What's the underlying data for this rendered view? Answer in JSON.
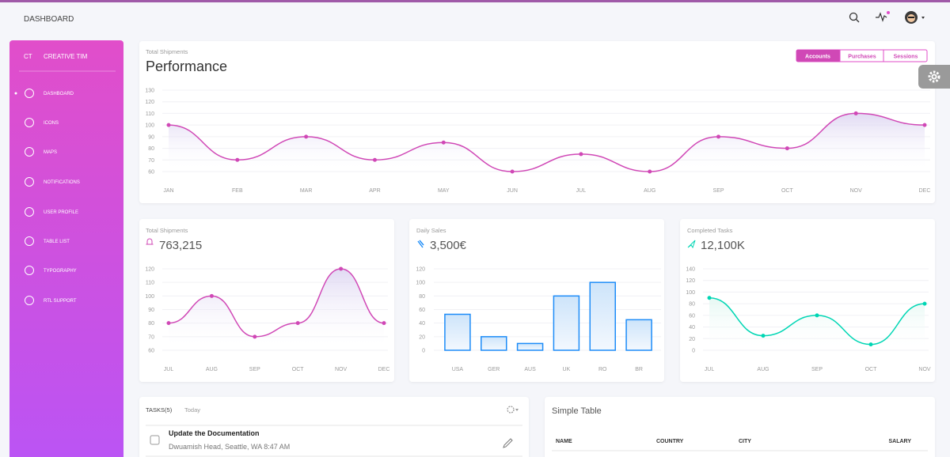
{
  "header": {
    "title": "DASHBOARD"
  },
  "sidebar": {
    "logo_mini": "CT",
    "logo": "CREATIVE TIM",
    "items": [
      "DASHBOARD",
      "ICONS",
      "MAPS",
      "NOTIFICATIONS",
      "USER PROFILE",
      "TABLE LIST",
      "TYPOGRAPHY",
      "RTL SUPPORT"
    ]
  },
  "chart_data": [
    {
      "type": "line",
      "subtitle": "Total Shipments",
      "title": "Performance",
      "tabs": [
        "Accounts",
        "Purchases",
        "Sessions"
      ],
      "categories": [
        "JAN",
        "FEB",
        "MAR",
        "APR",
        "MAY",
        "JUN",
        "JUL",
        "AUG",
        "SEP",
        "OCT",
        "NOV",
        "DEC"
      ],
      "values": [
        100,
        70,
        90,
        70,
        85,
        60,
        75,
        60,
        90,
        80,
        110,
        100
      ],
      "color": "#d048b6",
      "ylim": [
        60,
        130
      ],
      "yticks": [
        60,
        70,
        80,
        90,
        100,
        110,
        120,
        130
      ],
      "grid": true
    },
    {
      "type": "line",
      "title": "Total Shipments",
      "kpi": "763,215",
      "categories": [
        "JUL",
        "AUG",
        "SEP",
        "OCT",
        "NOV",
        "DEC"
      ],
      "values": [
        80,
        100,
        70,
        80,
        120,
        80
      ],
      "color": "#d048b6",
      "ylim": [
        60,
        120
      ],
      "yticks": [
        60,
        70,
        80,
        90,
        100,
        110,
        120
      ],
      "grid": true
    },
    {
      "type": "bar",
      "title": "Daily Sales",
      "kpi": "3,500€",
      "categories": [
        "USA",
        "GER",
        "AUS",
        "UK",
        "RO",
        "BR"
      ],
      "values": [
        53,
        20,
        10,
        80,
        100,
        45
      ],
      "color": "#1d8cf8",
      "ylim": [
        0,
        120
      ],
      "yticks": [
        0,
        20,
        40,
        60,
        80,
        100,
        120
      ],
      "grid": true
    },
    {
      "type": "line",
      "title": "Completed Tasks",
      "kpi": "12,100K",
      "categories": [
        "JUL",
        "AUG",
        "SEP",
        "OCT",
        "NOV"
      ],
      "values": [
        90,
        25,
        60,
        10,
        80
      ],
      "color": "#00d6b4",
      "ylim": [
        0,
        140
      ],
      "yticks": [
        0,
        20,
        40,
        60,
        80,
        100,
        120,
        140
      ],
      "grid": true
    }
  ],
  "tasks": {
    "title": "TASKS(5)",
    "filter": "Today",
    "items": [
      {
        "title": "Update the Documentation",
        "detail": "Dwuamish Head, Seattle, WA 8:47 AM"
      }
    ]
  },
  "simple_table": {
    "title": "Simple Table",
    "columns": [
      "NAME",
      "COUNTRY",
      "CITY",
      "SALARY"
    ]
  }
}
